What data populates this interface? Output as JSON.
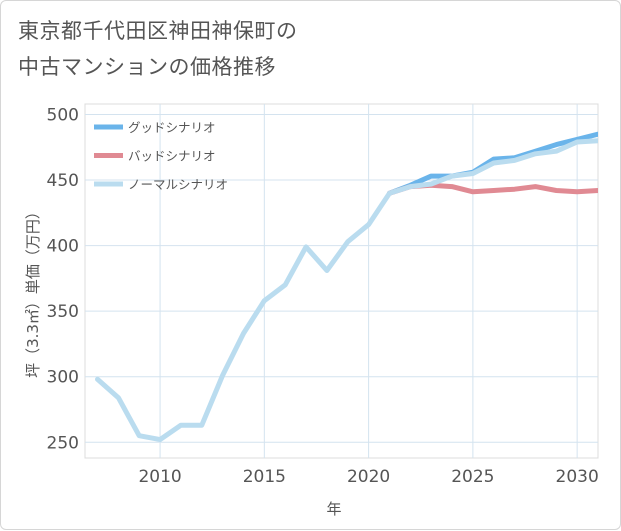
{
  "chart_data": {
    "type": "line",
    "title_lines": [
      "東京都千代田区神田神保町の",
      "中古マンションの価格推移"
    ],
    "xlabel": "年",
    "ylabel": "坪（3.3㎡）単価（万円）",
    "xlim": [
      2006.4,
      2031
    ],
    "ylim": [
      238,
      508
    ],
    "xticks": [
      2010,
      2015,
      2020,
      2025,
      2030
    ],
    "yticks": [
      250,
      300,
      350,
      400,
      450,
      500
    ],
    "legend_position": "top-left",
    "series": [
      {
        "name": "グッドシナリオ",
        "color": "#6ab4ea",
        "x": [
          2021,
          2022,
          2023,
          2024,
          2025,
          2026,
          2027,
          2028,
          2029,
          2030,
          2031
        ],
        "values": [
          440,
          446,
          453,
          453,
          456,
          466,
          467,
          472,
          477,
          481,
          485
        ]
      },
      {
        "name": "バッドシナリオ",
        "color": "#e08a93",
        "x": [
          2021,
          2022,
          2023,
          2024,
          2025,
          2026,
          2027,
          2028,
          2029,
          2030,
          2031
        ],
        "values": [
          440,
          445,
          446,
          445,
          441,
          442,
          443,
          445,
          442,
          441,
          442
        ]
      },
      {
        "name": "ノーマルシナリオ",
        "color": "#badcef",
        "x": [
          2007,
          2008,
          2009,
          2010,
          2011,
          2012,
          2013,
          2014,
          2015,
          2016,
          2017,
          2018,
          2019,
          2020,
          2021,
          2022,
          2023,
          2024,
          2025,
          2026,
          2027,
          2028,
          2029,
          2030,
          2031
        ],
        "values": [
          298,
          284,
          255,
          252,
          263,
          263,
          301,
          333,
          358,
          370,
          399,
          381,
          403,
          416,
          440,
          445,
          447,
          453,
          455,
          463,
          465,
          470,
          472,
          479,
          480
        ]
      }
    ]
  }
}
